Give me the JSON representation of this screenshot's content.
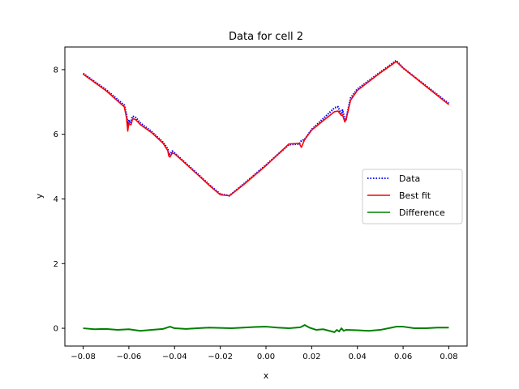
{
  "chart_data": {
    "type": "line",
    "title": "Data for cell 2",
    "xlabel": "x",
    "ylabel": "y",
    "xlim": [
      -0.088,
      0.088
    ],
    "ylim": [
      -0.55,
      8.7
    ],
    "xticks": [
      -0.08,
      -0.06,
      -0.04,
      -0.02,
      0.0,
      0.02,
      0.04,
      0.06,
      0.08
    ],
    "xtick_labels": [
      "−0.08",
      "−0.06",
      "−0.04",
      "−0.02",
      "0.00",
      "0.02",
      "0.04",
      "0.06",
      "0.08"
    ],
    "yticks": [
      0,
      2,
      4,
      6,
      8
    ],
    "ytick_labels": [
      "0",
      "2",
      "4",
      "6",
      "8"
    ],
    "grid": false,
    "legend_position": "center-right",
    "series": [
      {
        "name": "Data",
        "color": "#0000ff",
        "style": "dotted",
        "x": [
          -0.08,
          -0.07,
          -0.062,
          -0.061,
          -0.0605,
          -0.06,
          -0.0595,
          -0.059,
          -0.0585,
          -0.058,
          -0.057,
          -0.055,
          -0.05,
          -0.045,
          -0.043,
          -0.0425,
          -0.042,
          -0.041,
          -0.04,
          -0.035,
          -0.03,
          -0.025,
          -0.02,
          -0.016,
          -0.01,
          0.0,
          0.01,
          0.0145,
          0.0155,
          0.017,
          0.02,
          0.025,
          0.03,
          0.0315,
          0.033,
          0.0335,
          0.0345,
          0.035,
          0.037,
          0.04,
          0.05,
          0.057,
          0.06,
          0.07,
          0.08
        ],
        "y": [
          7.88,
          7.38,
          6.9,
          6.6,
          6.3,
          6.45,
          6.35,
          6.4,
          6.55,
          6.55,
          6.52,
          6.35,
          6.08,
          5.75,
          5.55,
          5.4,
          5.38,
          5.48,
          5.42,
          5.1,
          4.78,
          4.45,
          4.15,
          4.1,
          4.45,
          5.05,
          5.68,
          5.7,
          5.8,
          5.85,
          6.15,
          6.48,
          6.82,
          6.85,
          6.62,
          6.75,
          6.45,
          6.45,
          7.12,
          7.4,
          7.92,
          8.28,
          8.05,
          7.5,
          6.95
        ]
      },
      {
        "name": "Best fit",
        "color": "#ff0000",
        "style": "solid",
        "x": [
          -0.08,
          -0.07,
          -0.062,
          -0.061,
          -0.0605,
          -0.06,
          -0.0595,
          -0.059,
          -0.0585,
          -0.058,
          -0.057,
          -0.055,
          -0.05,
          -0.045,
          -0.043,
          -0.0425,
          -0.042,
          -0.041,
          -0.04,
          -0.035,
          -0.03,
          -0.025,
          -0.02,
          -0.016,
          -0.01,
          0.0,
          0.01,
          0.0145,
          0.0155,
          0.017,
          0.02,
          0.025,
          0.03,
          0.0315,
          0.033,
          0.0335,
          0.0345,
          0.035,
          0.037,
          0.04,
          0.05,
          0.057,
          0.06,
          0.07,
          0.08
        ],
        "y": [
          7.86,
          7.35,
          6.85,
          6.5,
          6.1,
          6.35,
          6.3,
          6.3,
          6.45,
          6.48,
          6.45,
          6.3,
          6.05,
          5.72,
          5.5,
          5.32,
          5.3,
          5.42,
          5.4,
          5.08,
          4.76,
          4.43,
          4.13,
          4.1,
          4.43,
          5.03,
          5.7,
          5.72,
          5.6,
          5.85,
          6.13,
          6.42,
          6.7,
          6.72,
          6.58,
          6.6,
          6.38,
          6.45,
          7.05,
          7.36,
          7.9,
          8.25,
          8.05,
          7.48,
          6.92
        ]
      },
      {
        "name": "Difference",
        "color": "#008000",
        "style": "solid",
        "x": [
          -0.08,
          -0.075,
          -0.07,
          -0.065,
          -0.06,
          -0.055,
          -0.05,
          -0.045,
          -0.042,
          -0.04,
          -0.035,
          -0.03,
          -0.025,
          -0.02,
          -0.015,
          -0.01,
          -0.005,
          0.0,
          0.005,
          0.01,
          0.015,
          0.017,
          0.019,
          0.022,
          0.025,
          0.03,
          0.031,
          0.032,
          0.033,
          0.034,
          0.035,
          0.04,
          0.045,
          0.05,
          0.055,
          0.057,
          0.06,
          0.065,
          0.07,
          0.075,
          0.08
        ],
        "y": [
          0.0,
          -0.03,
          -0.02,
          -0.05,
          -0.03,
          -0.08,
          -0.05,
          -0.02,
          0.05,
          0.0,
          -0.02,
          0.0,
          0.02,
          0.01,
          0.0,
          0.02,
          0.04,
          0.05,
          0.02,
          0.0,
          0.03,
          0.1,
          0.02,
          -0.05,
          -0.03,
          -0.12,
          -0.05,
          -0.1,
          0.0,
          -0.08,
          -0.05,
          -0.06,
          -0.08,
          -0.05,
          0.02,
          0.05,
          0.05,
          0.0,
          0.0,
          0.02,
          0.02
        ]
      }
    ]
  }
}
